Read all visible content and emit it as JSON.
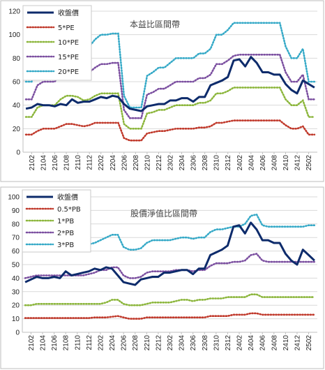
{
  "chart_data": [
    {
      "type": "line",
      "title": "本益比區間帶",
      "ylim": [
        0,
        120
      ],
      "yticks": [
        0,
        20,
        40,
        60,
        80,
        100,
        120
      ],
      "xticks": [
        "2102",
        "2104",
        "2106",
        "2108",
        "2110",
        "2112",
        "2202",
        "2204",
        "2206",
        "2208",
        "2210",
        "2212",
        "2302",
        "2304",
        "2306",
        "2308",
        "2310",
        "2312",
        "2402",
        "2404",
        "2406",
        "2408",
        "2410",
        "2412",
        "2502"
      ],
      "grid": true,
      "legend_position": "top-left",
      "x": [
        "2101",
        "2102",
        "2103",
        "2104",
        "2105",
        "2106",
        "2107",
        "2108",
        "2109",
        "2110",
        "2111",
        "2112",
        "2201",
        "2202",
        "2203",
        "2204",
        "2205",
        "2206",
        "2207",
        "2208",
        "2209",
        "2210",
        "2211",
        "2212",
        "2301",
        "2302",
        "2303",
        "2304",
        "2305",
        "2306",
        "2307",
        "2308",
        "2309",
        "2310",
        "2311",
        "2312",
        "2401",
        "2402",
        "2403",
        "2404",
        "2405",
        "2406",
        "2407",
        "2408",
        "2409",
        "2410",
        "2411",
        "2412",
        "2501",
        "2502",
        "2503"
      ],
      "series": [
        {
          "name": "收盤價",
          "color": "#0d2b6b",
          "style": "solid",
          "values": [
            37,
            38,
            41,
            40,
            40,
            39,
            41,
            40,
            45,
            42,
            43,
            43,
            45,
            47,
            46,
            48,
            47,
            41,
            37,
            36,
            35,
            39,
            40,
            41,
            41,
            44,
            44,
            46,
            46,
            43,
            47,
            47,
            57,
            59,
            61,
            64,
            78,
            79,
            73,
            81,
            76,
            68,
            68,
            66,
            66,
            58,
            53,
            50,
            61,
            58,
            55
          ]
        },
        {
          "name": "5*PE",
          "color": "#c0392b",
          "style": "dotted",
          "values": [
            15,
            15,
            18,
            20,
            20,
            20,
            22,
            24,
            24,
            23,
            22,
            23,
            25,
            25,
            25,
            25,
            25,
            12,
            10,
            10,
            10,
            16,
            17,
            18,
            18,
            19,
            20,
            20,
            20,
            20,
            21,
            21,
            22,
            25,
            25,
            26,
            27,
            27,
            27,
            27,
            27,
            27,
            27,
            27,
            27,
            23,
            20,
            20,
            22,
            15,
            15
          ]
        },
        {
          "name": "10*PE",
          "color": "#8cb63c",
          "style": "dotted",
          "values": [
            30,
            30,
            38,
            40,
            40,
            40,
            45,
            48,
            48,
            47,
            44,
            45,
            48,
            50,
            50,
            50,
            50,
            24,
            20,
            20,
            20,
            33,
            34,
            36,
            36,
            38,
            40,
            40,
            40,
            40,
            42,
            42,
            44,
            50,
            50,
            52,
            55,
            55,
            55,
            55,
            55,
            55,
            55,
            55,
            55,
            45,
            40,
            40,
            44,
            30,
            30
          ]
        },
        {
          "name": "15*PE",
          "color": "#7b4fa0",
          "style": "dotted",
          "values": [
            45,
            45,
            57,
            60,
            60,
            60,
            67,
            72,
            72,
            70,
            66,
            68,
            72,
            75,
            75,
            76,
            76,
            36,
            29,
            29,
            29,
            49,
            51,
            54,
            54,
            57,
            60,
            60,
            60,
            60,
            63,
            63,
            66,
            75,
            75,
            78,
            82,
            83,
            83,
            83,
            83,
            83,
            83,
            83,
            83,
            68,
            60,
            60,
            66,
            45,
            45
          ]
        },
        {
          "name": "20*PE",
          "color": "#35a9c7",
          "style": "dotted",
          "values": [
            60,
            60,
            76,
            80,
            80,
            80,
            90,
            96,
            96,
            93,
            88,
            90,
            96,
            100,
            100,
            101,
            101,
            48,
            38,
            38,
            38,
            65,
            68,
            72,
            72,
            76,
            80,
            80,
            80,
            80,
            84,
            84,
            88,
            100,
            100,
            104,
            110,
            110,
            110,
            110,
            110,
            110,
            110,
            110,
            110,
            90,
            80,
            80,
            88,
            60,
            60
          ]
        }
      ]
    },
    {
      "type": "line",
      "title": "股價淨值比區間帶",
      "ylim": [
        0,
        100
      ],
      "yticks": [
        0,
        10,
        20,
        30,
        40,
        50,
        60,
        70,
        80,
        90,
        100
      ],
      "xticks": [
        "2102",
        "2104",
        "2106",
        "2108",
        "2110",
        "2112",
        "2202",
        "2204",
        "2206",
        "2208",
        "2210",
        "2212",
        "2302",
        "2304",
        "2306",
        "2308",
        "2310",
        "2312",
        "2402",
        "2404",
        "2406",
        "2408",
        "2410",
        "2412",
        "2502"
      ],
      "grid": true,
      "legend_position": "top-left",
      "x": [
        "2101",
        "2102",
        "2103",
        "2104",
        "2105",
        "2106",
        "2107",
        "2108",
        "2109",
        "2110",
        "2111",
        "2112",
        "2201",
        "2202",
        "2203",
        "2204",
        "2205",
        "2206",
        "2207",
        "2208",
        "2209",
        "2210",
        "2211",
        "2212",
        "2301",
        "2302",
        "2303",
        "2304",
        "2305",
        "2306",
        "2307",
        "2308",
        "2309",
        "2310",
        "2311",
        "2312",
        "2401",
        "2402",
        "2403",
        "2404",
        "2405",
        "2406",
        "2407",
        "2408",
        "2409",
        "2410",
        "2411",
        "2412",
        "2501",
        "2502",
        "2503"
      ],
      "series": [
        {
          "name": "收盤價",
          "color": "#0d2b6b",
          "style": "solid",
          "values": [
            37,
            39,
            41,
            40,
            40,
            41,
            40,
            45,
            42,
            43,
            44,
            45,
            47,
            46,
            48,
            47,
            42,
            37,
            36,
            35,
            39,
            40,
            41,
            41,
            44,
            44,
            45,
            46,
            46,
            43,
            47,
            47,
            57,
            59,
            61,
            64,
            78,
            79,
            73,
            81,
            76,
            68,
            68,
            66,
            66,
            58,
            53,
            50,
            61,
            57,
            53
          ]
        },
        {
          "name": "0.5*PB",
          "color": "#c0392b",
          "style": "dotted",
          "values": [
            10.5,
            10.5,
            10.5,
            10.5,
            10.5,
            10.5,
            10.5,
            10.5,
            10.5,
            10.5,
            10.5,
            10.5,
            11,
            11,
            11,
            11.5,
            12,
            11,
            10,
            10,
            10,
            11,
            11,
            11,
            11,
            11,
            11,
            11,
            11,
            11,
            11,
            11,
            12,
            12,
            12,
            12,
            13,
            13,
            13,
            14,
            14,
            13,
            13,
            13,
            13,
            13,
            13,
            13,
            13,
            13,
            13
          ]
        },
        {
          "name": "1*PB",
          "color": "#8cb63c",
          "style": "dotted",
          "values": [
            20,
            20,
            21,
            21,
            21,
            21,
            21,
            21,
            21,
            21,
            21,
            21,
            21,
            21,
            22,
            24,
            24,
            21,
            20,
            20,
            20,
            21,
            22,
            22,
            22,
            22,
            23,
            24,
            24,
            23,
            24,
            24,
            25,
            25,
            25,
            26,
            26,
            26,
            26,
            28,
            28,
            26,
            26,
            26,
            26,
            26,
            26,
            26,
            26,
            26,
            26
          ]
        },
        {
          "name": "2*PB",
          "color": "#7b4fa0",
          "style": "dotted",
          "values": [
            40,
            41,
            42,
            42,
            42,
            42,
            42,
            42,
            42,
            42,
            42,
            43,
            44,
            46,
            46,
            48,
            48,
            42,
            40,
            40,
            41,
            44,
            45,
            45,
            45,
            45,
            46,
            46,
            46,
            45,
            46,
            46,
            49,
            51,
            51,
            51,
            52,
            52,
            53,
            57,
            58,
            53,
            52,
            52,
            52,
            52,
            52,
            52,
            52,
            52,
            52
          ]
        },
        {
          "name": "3*PB",
          "color": "#35a9c7",
          "style": "dotted",
          "values": [
            60,
            62,
            63,
            63,
            63,
            63,
            63,
            63,
            63,
            64,
            64,
            65,
            66,
            68,
            70,
            72,
            72,
            63,
            61,
            61,
            62,
            66,
            68,
            68,
            68,
            68,
            69,
            70,
            70,
            69,
            70,
            70,
            74,
            76,
            76,
            77,
            78,
            78,
            80,
            86,
            87,
            79,
            78,
            78,
            78,
            78,
            78,
            78,
            78,
            79,
            79
          ]
        }
      ]
    }
  ]
}
